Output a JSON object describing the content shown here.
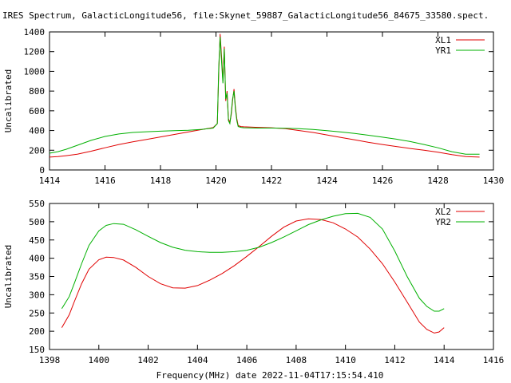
{
  "page": {
    "title": "IRES Spectrum, GalacticLongitude56, file:Skynet_59887_GalacticLongitude56_84675_33580.spect.",
    "xlabel": "Frequency(MHz) date 2022-11-04T17:15:54.410"
  },
  "colors": {
    "red": "#e00000",
    "green": "#00b000",
    "axis": "#000000"
  },
  "chart_data": [
    {
      "type": "line",
      "title": "IRES Spectrum, GalacticLongitude56, file:Skynet_59887_GalacticLongitude56_84675_33580.spect.",
      "xlabel": "",
      "ylabel": "Uncalibrated",
      "xlim": [
        1414,
        1430
      ],
      "ylim": [
        0,
        1400
      ],
      "xticks": [
        1414,
        1416,
        1418,
        1420,
        1422,
        1424,
        1426,
        1428,
        1430
      ],
      "yticks": [
        0,
        200,
        400,
        600,
        800,
        1000,
        1200,
        1400
      ],
      "legend": "top-right",
      "grid": false,
      "series": [
        {
          "name": "XL1",
          "color": "#e00000",
          "x": [
            1414.0,
            1414.3,
            1414.6,
            1415.0,
            1415.5,
            1416.0,
            1416.5,
            1417.0,
            1417.5,
            1418.0,
            1418.5,
            1419.0,
            1419.5,
            1419.9,
            1420.05,
            1420.1,
            1420.15,
            1420.2,
            1420.25,
            1420.3,
            1420.35,
            1420.4,
            1420.45,
            1420.5,
            1420.55,
            1420.6,
            1420.65,
            1420.7,
            1420.75,
            1420.8,
            1420.9,
            1421.0,
            1421.5,
            1422.0,
            1422.5,
            1423.0,
            1423.5,
            1424.0,
            1424.5,
            1425.0,
            1425.5,
            1426.0,
            1426.5,
            1427.0,
            1427.5,
            1428.0,
            1428.5,
            1429.0,
            1429.5
          ],
          "y": [
            130,
            135,
            145,
            160,
            190,
            225,
            258,
            285,
            310,
            335,
            360,
            385,
            410,
            430,
            470,
            1000,
            1380,
            1150,
            900,
            1250,
            700,
            800,
            520,
            480,
            560,
            700,
            820,
            640,
            520,
            450,
            440,
            438,
            432,
            428,
            418,
            400,
            380,
            355,
            330,
            305,
            280,
            258,
            238,
            218,
            200,
            180,
            155,
            135,
            130
          ]
        },
        {
          "name": "YR1",
          "color": "#00b000",
          "x": [
            1414.0,
            1414.3,
            1414.6,
            1415.0,
            1415.5,
            1416.0,
            1416.5,
            1417.0,
            1417.5,
            1418.0,
            1418.5,
            1419.0,
            1419.5,
            1419.9,
            1420.05,
            1420.1,
            1420.15,
            1420.2,
            1420.25,
            1420.3,
            1420.35,
            1420.4,
            1420.45,
            1420.5,
            1420.55,
            1420.6,
            1420.65,
            1420.7,
            1420.75,
            1420.8,
            1420.9,
            1421.0,
            1421.5,
            1422.0,
            1422.5,
            1423.0,
            1423.5,
            1424.0,
            1424.5,
            1425.0,
            1425.5,
            1426.0,
            1426.5,
            1427.0,
            1427.5,
            1428.0,
            1428.5,
            1429.0,
            1429.5
          ],
          "y": [
            170,
            185,
            210,
            250,
            300,
            340,
            365,
            380,
            388,
            393,
            398,
            402,
            412,
            425,
            470,
            1050,
            1350,
            1100,
            880,
            1230,
            720,
            780,
            500,
            470,
            580,
            720,
            800,
            620,
            500,
            440,
            432,
            428,
            425,
            425,
            423,
            418,
            410,
            398,
            385,
            370,
            352,
            333,
            312,
            288,
            258,
            225,
            185,
            160,
            160
          ]
        }
      ]
    },
    {
      "type": "line",
      "title": "",
      "xlabel": "Frequency(MHz) date 2022-11-04T17:15:54.410",
      "ylabel": "Uncalibrated",
      "xlim": [
        1398,
        1416
      ],
      "ylim": [
        150,
        550
      ],
      "xticks": [
        1398,
        1400,
        1402,
        1404,
        1406,
        1408,
        1410,
        1412,
        1414,
        1416
      ],
      "yticks": [
        150,
        200,
        250,
        300,
        350,
        400,
        450,
        500,
        550
      ],
      "legend": "top-right",
      "grid": false,
      "series": [
        {
          "name": "XL2",
          "color": "#e00000",
          "x": [
            1398.5,
            1398.8,
            1399.0,
            1399.3,
            1399.6,
            1400.0,
            1400.3,
            1400.6,
            1401.0,
            1401.5,
            1402.0,
            1402.5,
            1403.0,
            1403.5,
            1404.0,
            1404.5,
            1405.0,
            1405.5,
            1406.0,
            1406.5,
            1407.0,
            1407.5,
            1408.0,
            1408.5,
            1409.0,
            1409.5,
            1410.0,
            1410.5,
            1411.0,
            1411.5,
            1412.0,
            1412.5,
            1413.0,
            1413.3,
            1413.6,
            1413.8,
            1414.0
          ],
          "y": [
            210,
            245,
            280,
            330,
            370,
            396,
            403,
            402,
            395,
            375,
            350,
            330,
            319,
            318,
            325,
            340,
            358,
            380,
            405,
            432,
            460,
            485,
            502,
            508,
            506,
            497,
            480,
            458,
            425,
            385,
            335,
            280,
            225,
            205,
            195,
            198,
            210
          ]
        },
        {
          "name": "YR2",
          "color": "#00b000",
          "x": [
            1398.5,
            1398.8,
            1399.0,
            1399.3,
            1399.6,
            1400.0,
            1400.3,
            1400.6,
            1401.0,
            1401.5,
            1402.0,
            1402.5,
            1403.0,
            1403.5,
            1404.0,
            1404.5,
            1405.0,
            1405.5,
            1406.0,
            1406.5,
            1407.0,
            1407.5,
            1408.0,
            1408.5,
            1409.0,
            1409.5,
            1410.0,
            1410.5,
            1411.0,
            1411.5,
            1412.0,
            1412.5,
            1413.0,
            1413.3,
            1413.6,
            1413.8,
            1414.0
          ],
          "y": [
            262,
            295,
            330,
            385,
            435,
            475,
            490,
            495,
            493,
            478,
            460,
            443,
            430,
            422,
            418,
            416,
            416,
            418,
            422,
            430,
            443,
            458,
            475,
            492,
            505,
            515,
            522,
            523,
            512,
            480,
            420,
            350,
            290,
            268,
            255,
            255,
            262
          ]
        }
      ]
    }
  ]
}
